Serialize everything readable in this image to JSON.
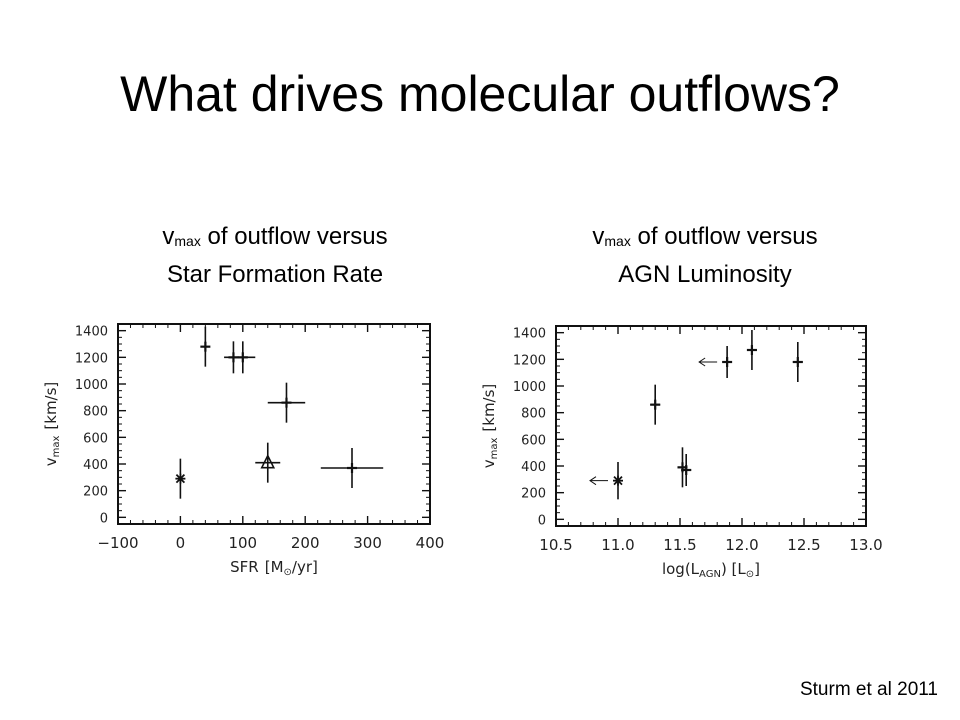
{
  "title": "What drives molecular outflows?",
  "left_subtitle": {
    "prefix": "v",
    "sub": "max",
    "line1_rest": " of outflow versus",
    "line2": "Star Formation Rate"
  },
  "right_subtitle": {
    "prefix": "v",
    "sub": "max",
    "line1_rest": " of outflow versus",
    "line2": "AGN Luminosity"
  },
  "citation": "Sturm et al 2011",
  "chart_data": [
    {
      "type": "scatter",
      "xlabel_base": "SFR",
      "xlabel_unit": "[M",
      "xlabel_unit_sub": "⊙",
      "xlabel_unit_tail": "/yr]",
      "ylabel_base": "v",
      "ylabel_sub": "max",
      "ylabel_unit": "[km/s]",
      "xlim": [
        -100,
        400
      ],
      "ylim": [
        -50,
        1450
      ],
      "xticks": [
        -100,
        0,
        100,
        200,
        300,
        400
      ],
      "xtick_labels": [
        "−100",
        "0",
        "100",
        "200",
        "300",
        "400"
      ],
      "yticks": [
        0,
        200,
        400,
        600,
        800,
        1000,
        1200,
        1400
      ],
      "ytick_labels": [
        "0",
        "200",
        "400",
        "600",
        "800",
        "1000",
        "1200",
        "1400"
      ],
      "points": [
        {
          "x": 0,
          "y": 290,
          "xerr": 0,
          "yerr": 150,
          "marker": "asterisk"
        },
        {
          "x": 40,
          "y": 1280,
          "xerr": 0,
          "yerr": 150,
          "marker": "plus"
        },
        {
          "x": 85,
          "y": 1200,
          "xerr": 15,
          "yerr": 120,
          "marker": "plus"
        },
        {
          "x": 100,
          "y": 1200,
          "xerr": 20,
          "yerr": 120,
          "marker": "plus"
        },
        {
          "x": 140,
          "y": 410,
          "xerr": 20,
          "yerr": 150,
          "marker": "triangle"
        },
        {
          "x": 170,
          "y": 860,
          "xerr": 30,
          "yerr": 150,
          "marker": "plus"
        },
        {
          "x": 275,
          "y": 370,
          "xerr": 50,
          "yerr": 150,
          "marker": "plus"
        }
      ],
      "grid": false
    },
    {
      "type": "scatter",
      "xlabel_base": "log(L",
      "xlabel_sub": "AGN",
      "xlabel_mid": ") [L",
      "xlabel_unit_sub": "⊙",
      "xlabel_unit_tail": "]",
      "ylabel_base": "v",
      "ylabel_sub": "max",
      "ylabel_unit": "[km/s]",
      "xlim": [
        10.5,
        13.0
      ],
      "ylim": [
        -50,
        1450
      ],
      "xticks": [
        10.5,
        11.0,
        11.5,
        12.0,
        12.5,
        13.0
      ],
      "xtick_labels": [
        "10.5",
        "11.0",
        "11.5",
        "12.0",
        "12.5",
        "13.0"
      ],
      "yticks": [
        0,
        200,
        400,
        600,
        800,
        1000,
        1200,
        1400
      ],
      "ytick_labels": [
        "0",
        "200",
        "400",
        "600",
        "800",
        "1000",
        "1200",
        "1400"
      ],
      "points": [
        {
          "x": 11.0,
          "y": 290,
          "xerr": 0,
          "yerr": 140,
          "marker": "asterisk",
          "upper_limit": true
        },
        {
          "x": 11.3,
          "y": 860,
          "xerr": 0.04,
          "yerr": 150,
          "marker": "plus"
        },
        {
          "x": 11.52,
          "y": 390,
          "xerr": 0.04,
          "yerr": 150,
          "marker": "plus"
        },
        {
          "x": 11.55,
          "y": 370,
          "xerr": 0.04,
          "yerr": 120,
          "marker": "plus"
        },
        {
          "x": 11.88,
          "y": 1180,
          "xerr": 0,
          "yerr": 120,
          "marker": "plus",
          "upper_limit": true
        },
        {
          "x": 12.08,
          "y": 1270,
          "xerr": 0.04,
          "yerr": 150,
          "marker": "plus"
        },
        {
          "x": 12.45,
          "y": 1180,
          "xerr": 0.04,
          "yerr": 150,
          "marker": "plus"
        }
      ],
      "grid": false
    }
  ]
}
